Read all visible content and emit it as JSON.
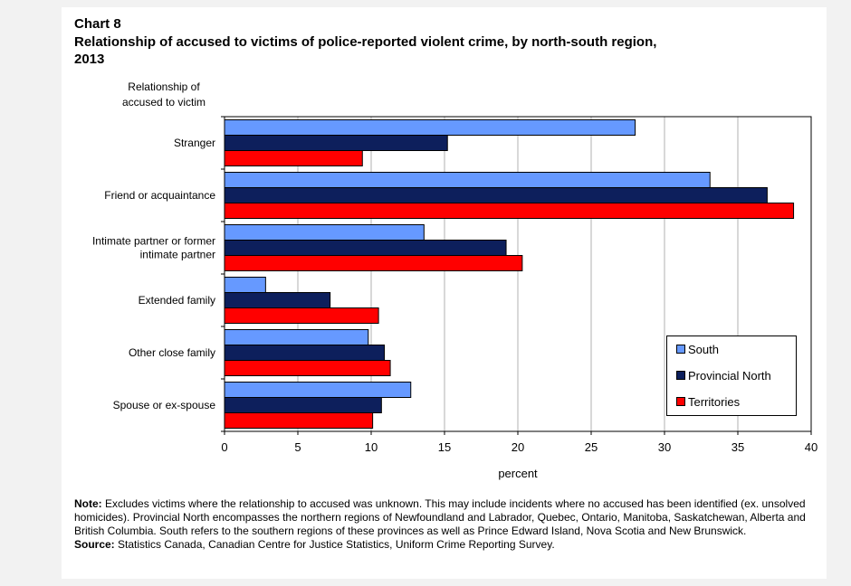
{
  "header": {
    "chart_number": "Chart 8",
    "title": "Relationship of accused to victims of police-reported violent crime, by north-south region, 2013"
  },
  "colors": {
    "south": "#6699ff",
    "provincial_north": "#0d1f5c",
    "territories": "#ff0000"
  },
  "chart_data": {
    "type": "bar",
    "orientation": "horizontal",
    "title": "Relationship of accused to victims of police-reported violent crime, by north-south region, 2013",
    "ylabel": "Relationship of accused to victim",
    "xlabel": "percent",
    "xlim": [
      0,
      40
    ],
    "xticks": [
      0,
      5,
      10,
      15,
      20,
      25,
      30,
      35,
      40
    ],
    "grid": true,
    "legend_position": "bottom-right",
    "categories": [
      "Stranger",
      "Friend or acquaintance",
      "Intimate partner or former intimate partner",
      "Extended family",
      "Other close family",
      "Spouse or ex-spouse"
    ],
    "series": [
      {
        "name": "South",
        "color": "#6699ff",
        "values": [
          28.0,
          33.1,
          13.6,
          2.8,
          9.8,
          12.7
        ]
      },
      {
        "name": "Provincial North",
        "color": "#0d1f5c",
        "values": [
          15.2,
          37.0,
          19.2,
          7.2,
          10.9,
          10.7
        ]
      },
      {
        "name": "Territories",
        "color": "#ff0000",
        "values": [
          9.4,
          38.8,
          20.3,
          10.5,
          11.3,
          10.1
        ]
      }
    ]
  },
  "category_lines": [
    [
      "Stranger"
    ],
    [
      "Friend or acquaintance"
    ],
    [
      "Intimate partner or former",
      "intimate partner"
    ],
    [
      "Extended family"
    ],
    [
      "Other close family"
    ],
    [
      "Spouse or ex-spouse"
    ]
  ],
  "yaxis_title_lines": [
    "Relationship of",
    "accused to victim"
  ],
  "notes": {
    "note_label": "Note:",
    "note_text": " Excludes victims where the relationship to accused was unknown. This may include incidents where no accused has been identified (ex. unsolved homicides). Provincial North encompasses the northern regions of Newfoundland and Labrador, Quebec, Ontario, Manitoba, Saskatchewan, Alberta and British Columbia. South refers to the southern regions of these provinces as well as Prince Edward Island, Nova Scotia and New Brunswick.",
    "source_label": "Source:",
    "source_text": " Statistics Canada, Canadian Centre for Justice Statistics, Uniform Crime Reporting Survey."
  }
}
